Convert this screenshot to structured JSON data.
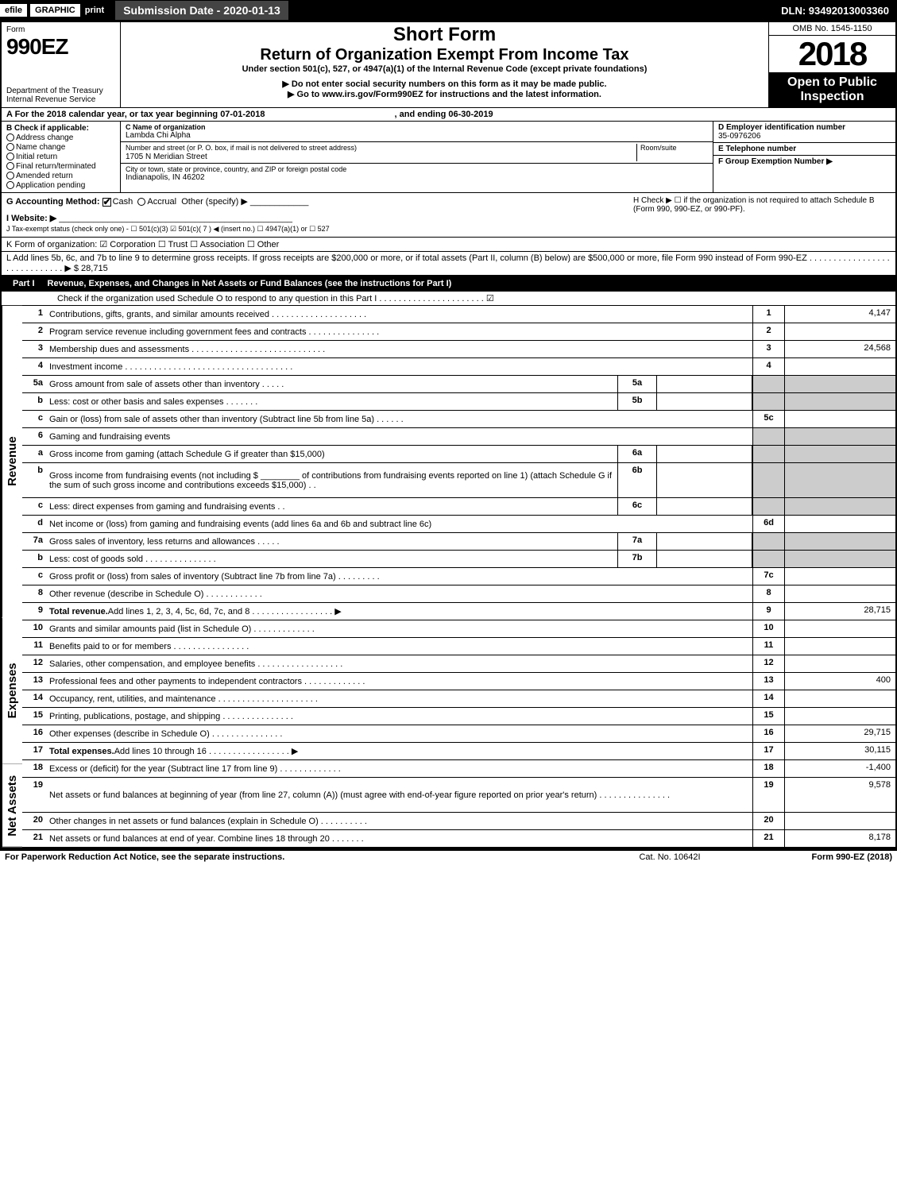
{
  "topbar": {
    "efile": "efile",
    "graphic": "GRAPHIC",
    "print": "print",
    "submission": "Submission Date - 2020-01-13",
    "dln": "DLN: 93492013003360"
  },
  "header": {
    "form_label": "Form",
    "form_number": "990EZ",
    "dept1": "Department of the Treasury",
    "dept2": "Internal Revenue Service",
    "short_form": "Short Form",
    "return_title": "Return of Organization Exempt From Income Tax",
    "under_section": "Under section 501(c), 527, or 4947(a)(1) of the Internal Revenue Code (except private foundations)",
    "do_not_enter": "▶ Do not enter social security numbers on this form as it may be made public.",
    "go_to": "▶ Go to www.irs.gov/Form990EZ for instructions and the latest information.",
    "omb": "OMB No. 1545-1150",
    "year": "2018",
    "open": "Open to Public Inspection"
  },
  "lineA": {
    "text": "A   For the 2018 calendar year, or tax year beginning 07-01-2018",
    "ending": ", and ending 06-30-2019"
  },
  "boxB": {
    "title": "B  Check if applicable:",
    "items": [
      "Address change",
      "Name change",
      "Initial return",
      "Final return/terminated",
      "Amended return",
      "Application pending"
    ]
  },
  "boxC": {
    "label_name": "C Name of organization",
    "org_name": "Lambda Chi Alpha",
    "label_street": "Number and street (or P. O. box, if mail is not delivered to street address)",
    "room": "Room/suite",
    "street": "1705 N Meridian Street",
    "label_city": "City or town, state or province, country, and ZIP or foreign postal code",
    "city": "Indianapolis, IN  46202"
  },
  "boxD": {
    "label": "D Employer identification number",
    "value": "35-0976206"
  },
  "boxE": {
    "label": "E Telephone number",
    "value": ""
  },
  "boxF": {
    "label": "F Group Exemption Number  ▶",
    "value": ""
  },
  "lineG": {
    "label": "G Accounting Method:",
    "opts": [
      "Cash",
      "Accrual",
      "Other (specify) ▶"
    ],
    "checked": "Cash"
  },
  "lineH": {
    "text": "H  Check ▶   ☐  if the organization is not required to attach Schedule B (Form 990, 990-EZ, or 990-PF)."
  },
  "lineI": {
    "label": "I Website: ▶"
  },
  "lineJ": {
    "label": "J Tax-exempt status (check only one) -  ☐ 501(c)(3)  ☑ 501(c)( 7 ) ◀ (insert no.)  ☐ 4947(a)(1) or  ☐ 527"
  },
  "lineK": {
    "label": "K Form of organization:   ☑ Corporation   ☐ Trust   ☐ Association   ☐ Other"
  },
  "lineL": {
    "text": "L Add lines 5b, 6c, and 7b to line 9 to determine gross receipts. If gross receipts are $200,000 or more, or if total assets (Part II, column (B) below) are $500,000 or more, file Form 990 instead of Form 990-EZ  .  .  .  .  .  .  .  .  .  .  .  .  .  .  .  .  .  .  .  .  .  .  .  .  .  .  .  .  .  ▶ $ 28,715"
  },
  "part1": {
    "label": "Part I",
    "title": "Revenue, Expenses, and Changes in Net Assets or Fund Balances (see the instructions for Part I)",
    "check_line": "Check if the organization used Schedule O to respond to any question in this Part I  .  .  .  .  .  .  .  .  .  .  .  .  .  .  .  .  .  .  .  .  .  .  ☑"
  },
  "sections": {
    "revenue": "Revenue",
    "expenses": "Expenses",
    "netassets": "Net Assets"
  },
  "rows": [
    {
      "n": "1",
      "d": "Contributions, gifts, grants, and similar amounts received  .  .  .  .  .  .  .  .  .  .  .  .  .  .  .  .  .  .  .  .",
      "an": "1",
      "av": "4,147"
    },
    {
      "n": "2",
      "d": "Program service revenue including government fees and contracts  .  .  .  .  .  .  .  .  .  .  .  .  .  .  .",
      "an": "2",
      "av": ""
    },
    {
      "n": "3",
      "d": "Membership dues and assessments  .  .  .  .  .  .  .  .  .  .  .  .  .  .  .  .  .  .  .  .  .  .  .  .  .  .  .   .",
      "an": "3",
      "av": "24,568"
    },
    {
      "n": "4",
      "d": "Investment income  .  .  .  .  .  .  .  .  .  .  .  .  .  .  .  .  .  .  .  .  .  .  .  .  .  .  .  .  .  .  .  .  .  .  .",
      "an": "4",
      "av": ""
    },
    {
      "n": "5a",
      "d": "Gross amount from sale of assets other than inventory  .  .  .  .  .",
      "sn": "5a",
      "sv": "",
      "grey": true
    },
    {
      "n": "b",
      "d": "Less: cost or other basis and sales expenses  .  .  .  .  .  .  .",
      "sn": "5b",
      "sv": "",
      "grey": true
    },
    {
      "n": "c",
      "d": "Gain or (loss) from sale of assets other than inventory (Subtract line 5b from line 5a)  .  .  .  .  .  .",
      "an": "5c",
      "av": ""
    },
    {
      "n": "6",
      "d": "Gaming and fundraising events",
      "grey": true,
      "noamt": true
    },
    {
      "n": "a",
      "d": "Gross income from gaming (attach Schedule G if greater than $15,000)",
      "sn": "6a",
      "sv": "",
      "grey": true
    },
    {
      "n": "b",
      "d": "Gross income from fundraising events (not including $ ________ of contributions from fundraising events reported on line 1) (attach Schedule G if the sum of such gross income and contributions exceeds $15,000)   .  .",
      "sn": "6b",
      "sv": "",
      "grey": true,
      "tall": true
    },
    {
      "n": "c",
      "d": "Less: direct expenses from gaming and fundraising events    .  .",
      "sn": "6c",
      "sv": "",
      "grey": true
    },
    {
      "n": "d",
      "d": "Net income or (loss) from gaming and fundraising events (add lines 6a and 6b and subtract line 6c)",
      "an": "6d",
      "av": ""
    },
    {
      "n": "7a",
      "d": "Gross sales of inventory, less returns and allowances  .  .  .  .  .",
      "sn": "7a",
      "sv": "",
      "grey": true
    },
    {
      "n": "b",
      "d": "Less: cost of goods sold         .  .  .  .  .  .  .  .  .  .  .  .  .  .  .",
      "sn": "7b",
      "sv": "",
      "grey": true
    },
    {
      "n": "c",
      "d": "Gross profit or (loss) from sales of inventory (Subtract line 7b from line 7a)  .  .  .  .  .  .  .  .  .",
      "an": "7c",
      "av": ""
    },
    {
      "n": "8",
      "d": "Other revenue (describe in Schedule O)                 .  .  .  .  .  .  .  .  .  .  .  .",
      "an": "8",
      "av": ""
    },
    {
      "n": "9",
      "d": "Total revenue. Add lines 1, 2, 3, 4, 5c, 6d, 7c, and 8  .  .  .  .  .  .  .  .  .  .  .  .  .  .  .  .  .    ▶",
      "an": "9",
      "av": "28,715",
      "bold": true
    },
    {
      "n": "10",
      "d": "Grants and similar amounts paid (list in Schedule O)        .  .  .  .  .  .  .  .  .  .  .  .  .",
      "an": "10",
      "av": ""
    },
    {
      "n": "11",
      "d": "Benefits paid to or for members            .  .  .  .  .  .  .  .  .  .  .  .  .  .  .  .",
      "an": "11",
      "av": ""
    },
    {
      "n": "12",
      "d": "Salaries, other compensation, and employee benefits .  .  .  .  .  .  .  .  .  .  .  .  .  .  .  .  .  .",
      "an": "12",
      "av": ""
    },
    {
      "n": "13",
      "d": "Professional fees and other payments to independent contractors  .  .  .  .  .  .  .  .  .  .  .  .   .",
      "an": "13",
      "av": "400"
    },
    {
      "n": "14",
      "d": "Occupancy, rent, utilities, and maintenance .  .  .  .  .  .  .  .  .  .  .  .  .  .  .  .  .  .  .  .   .",
      "an": "14",
      "av": ""
    },
    {
      "n": "15",
      "d": "Printing, publications, postage, and shipping       .  .  .  .  .  .  .  .  .  .  .  .  .  .  .",
      "an": "15",
      "av": ""
    },
    {
      "n": "16",
      "d": "Other expenses (describe in Schedule O)         .  .  .  .  .  .  .  .  .  .  .  .  .  .  .",
      "an": "16",
      "av": "29,715"
    },
    {
      "n": "17",
      "d": "Total expenses. Add lines 10 through 16     .  .  .  .  .  .  .  .  .  .  .  .  .  .  .  .  .   ▶",
      "an": "17",
      "av": "30,115",
      "bold": true
    },
    {
      "n": "18",
      "d": "Excess or (deficit) for the year (Subtract line 17 from line 9)     .  .  .  .  .  .  .  .  .  .  .  .  .",
      "an": "18",
      "av": "-1,400"
    },
    {
      "n": "19",
      "d": "Net assets or fund balances at beginning of year (from line 27, column (A)) (must agree with end-of-year figure reported on prior year's return)      .  .  .  .  .  .  .  .  .  .  .  .  .  .  .",
      "an": "19",
      "av": "9,578",
      "tall": true
    },
    {
      "n": "20",
      "d": "Other changes in net assets or fund balances (explain in Schedule O)    .  .  .  .  .  .  .  .  .  .",
      "an": "20",
      "av": ""
    },
    {
      "n": "21",
      "d": "Net assets or fund balances at end of year. Combine lines 18 through 20      .  .  .  .  .  .  .",
      "an": "21",
      "av": "8,178"
    }
  ],
  "footer": {
    "left": "For Paperwork Reduction Act Notice, see the separate instructions.",
    "mid": "Cat. No. 10642I",
    "right": "Form 990-EZ (2018)"
  }
}
